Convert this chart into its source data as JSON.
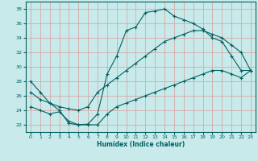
{
  "xlabel": "Humidex (Indice chaleur)",
  "background_color": "#c8eaea",
  "grid_color": "#d8a8a8",
  "line_color": "#006060",
  "xlim": [
    -0.5,
    23.5
  ],
  "ylim": [
    21.0,
    39.0
  ],
  "xticks": [
    0,
    1,
    2,
    3,
    4,
    5,
    6,
    7,
    8,
    9,
    10,
    11,
    12,
    13,
    14,
    15,
    16,
    17,
    18,
    19,
    20,
    21,
    22,
    23
  ],
  "yticks": [
    22,
    24,
    26,
    28,
    30,
    32,
    34,
    36,
    38
  ],
  "line_max": {
    "x": [
      0,
      1,
      2,
      3,
      4,
      5,
      6,
      7,
      8,
      9,
      10,
      11,
      12,
      13,
      14,
      15,
      16,
      17,
      18,
      19,
      20,
      21,
      22,
      23
    ],
    "y": [
      28,
      26.5,
      25,
      24,
      22.2,
      22.0,
      22.1,
      23.5,
      29.0,
      31.5,
      35.0,
      35.5,
      37.5,
      37.7,
      38.0,
      37.0,
      36.5,
      36.0,
      35.2,
      34.0,
      33.5,
      31.5,
      29.5,
      29.5
    ]
  },
  "line_mean": {
    "x": [
      0,
      1,
      2,
      3,
      4,
      5,
      6,
      7,
      8,
      9,
      10,
      11,
      12,
      13,
      14,
      15,
      16,
      17,
      18,
      19,
      20,
      21,
      22,
      23
    ],
    "y": [
      26.5,
      25.5,
      25.0,
      24.5,
      24.2,
      24.0,
      24.5,
      26.5,
      27.5,
      28.5,
      29.5,
      30.5,
      31.5,
      32.5,
      33.5,
      34.0,
      34.5,
      35.0,
      35.0,
      34.5,
      34.0,
      33.0,
      32.0,
      29.5
    ]
  },
  "line_min": {
    "x": [
      0,
      1,
      2,
      3,
      4,
      5,
      6,
      7,
      8,
      9,
      10,
      11,
      12,
      13,
      14,
      15,
      16,
      17,
      18,
      19,
      20,
      21,
      22,
      23
    ],
    "y": [
      24.5,
      24.0,
      23.5,
      23.8,
      22.5,
      22.0,
      22.0,
      22.0,
      23.5,
      24.5,
      25.0,
      25.5,
      26.0,
      26.5,
      27.0,
      27.5,
      28.0,
      28.5,
      29.0,
      29.5,
      29.5,
      29.0,
      28.5,
      29.5
    ]
  }
}
